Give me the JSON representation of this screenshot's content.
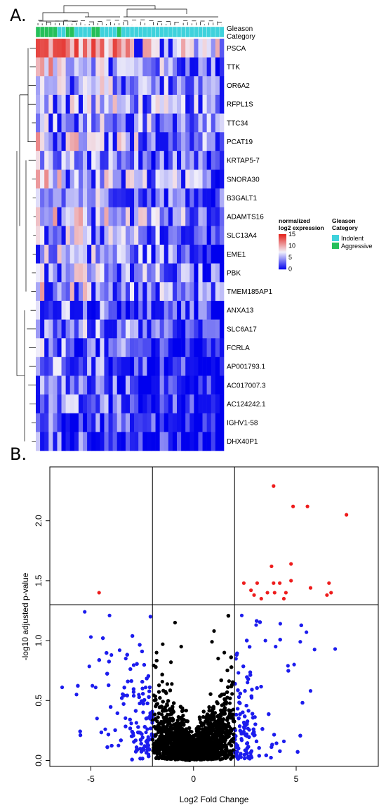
{
  "panel_a_label": "A.",
  "panel_b_label": "B.",
  "chart_data": [
    {
      "type": "heatmap",
      "annotation_label_line1": "Gleason",
      "annotation_label_line2": "Category",
      "genes": [
        "PSCA",
        "TTK",
        "OR6A2",
        "RFPL1S",
        "TTC34",
        "PCAT19",
        "KRTAP5-7",
        "SNORA30",
        "B3GALT1",
        "ADAMTS16",
        "SLC13A4",
        "EME1",
        "PBK",
        "TMEM185AP1",
        "ANXA13",
        "SLC6A17",
        "FCRLA",
        "AP001793.1",
        "AC017007.3",
        "AC124242.1",
        "IGHV1-58",
        "DHX40P1"
      ],
      "sample_categories": [
        "Aggressive",
        "Aggressive",
        "Aggressive",
        "Aggressive",
        "Aggressive",
        "Indolent",
        "Indolent",
        "Aggressive",
        "Aggressive",
        "Indolent",
        "Indolent",
        "Indolent",
        "Indolent",
        "Aggressive",
        "Aggressive",
        "Indolent",
        "Indolent",
        "Indolent",
        "Indolent",
        "Aggressive",
        "Indolent",
        "Indolent",
        "Indolent",
        "Indolent",
        "Indolent",
        "Indolent",
        "Indolent",
        "Indolent",
        "Indolent",
        "Indolent",
        "Indolent",
        "Indolent",
        "Indolent",
        "Indolent",
        "Indolent",
        "Indolent",
        "Indolent",
        "Indolent",
        "Indolent",
        "Indolent",
        "Indolent",
        "Indolent",
        "Indolent",
        "Indolent"
      ],
      "value_legend": {
        "title_line1": "normalized",
        "title_line2": "log2 expression",
        "ticks": [
          "15",
          "10",
          "5",
          "0"
        ],
        "range": [
          0,
          15
        ],
        "colors": {
          "low": "#0000ee",
          "mid": "#f2f0fa",
          "high": "#e4231c"
        }
      },
      "category_legend": {
        "title_line1": "Gleason",
        "title_line2": "Category",
        "items": [
          {
            "label": "Indolent",
            "color": "#3fd2dc"
          },
          {
            "label": "Aggressive",
            "color": "#25c05a"
          }
        ]
      }
    },
    {
      "type": "scatter",
      "xlabel": "Log2 Fold Change",
      "ylabel": "-log10 adjusted p-value",
      "xlim": [
        -7,
        9
      ],
      "ylim": [
        -0.05,
        2.45
      ],
      "xticks": [
        "-5",
        "0",
        "5"
      ],
      "yticks": [
        "0.0",
        "0.5",
        "1.0",
        "1.5",
        "2.0"
      ],
      "thresholds": {
        "x": [
          -2,
          2
        ],
        "y": 1.3
      },
      "colors": {
        "significant": "#ee1c1c",
        "fold_change_only": "#1c1cee",
        "not_significant": "#000000"
      },
      "significant_points": [
        {
          "x": -4.6,
          "y": 1.4
        },
        {
          "x": 3.9,
          "y": 2.29
        },
        {
          "x": 4.85,
          "y": 2.12
        },
        {
          "x": 5.55,
          "y": 2.12
        },
        {
          "x": 7.45,
          "y": 2.05
        },
        {
          "x": 2.45,
          "y": 1.48
        },
        {
          "x": 2.8,
          "y": 1.42
        },
        {
          "x": 3.1,
          "y": 1.48
        },
        {
          "x": 3.8,
          "y": 1.62
        },
        {
          "x": 3.9,
          "y": 1.48
        },
        {
          "x": 3.6,
          "y": 1.4
        },
        {
          "x": 3.95,
          "y": 1.4
        },
        {
          "x": 4.2,
          "y": 1.48
        },
        {
          "x": 4.4,
          "y": 1.35
        },
        {
          "x": 4.75,
          "y": 1.5
        },
        {
          "x": 4.5,
          "y": 1.4
        },
        {
          "x": 4.75,
          "y": 1.64
        },
        {
          "x": 5.7,
          "y": 1.44
        },
        {
          "x": 6.6,
          "y": 1.48
        },
        {
          "x": 6.7,
          "y": 1.4
        },
        {
          "x": 6.5,
          "y": 1.38
        },
        {
          "x": 3.3,
          "y": 1.35
        },
        {
          "x": 2.95,
          "y": 1.38
        }
      ],
      "blue_extremes": [
        {
          "x": -5.3,
          "y": 1.24
        },
        {
          "x": -5.0,
          "y": 1.03
        },
        {
          "x": -6.4,
          "y": 0.61
        },
        {
          "x": -5.7,
          "y": 0.55
        },
        {
          "x": -4.7,
          "y": 0.35
        },
        {
          "x": -4.3,
          "y": 0.26
        },
        {
          "x": -4.0,
          "y": 0.88
        },
        {
          "x": -3.6,
          "y": 0.92
        },
        {
          "x": -3.3,
          "y": 0.85
        },
        {
          "x": -2.1,
          "y": 1.2
        },
        {
          "x": 5.7,
          "y": 0.58
        },
        {
          "x": 6.9,
          "y": 0.93
        },
        {
          "x": 5.2,
          "y": 0.99
        },
        {
          "x": 4.6,
          "y": 0.79
        },
        {
          "x": 4.9,
          "y": 0.8
        },
        {
          "x": 5.5,
          "y": 1.07
        },
        {
          "x": 4.0,
          "y": 0.95
        },
        {
          "x": 3.5,
          "y": 1.0
        },
        {
          "x": 3.05,
          "y": 1.13
        },
        {
          "x": 2.35,
          "y": 1.21
        }
      ]
    }
  ]
}
